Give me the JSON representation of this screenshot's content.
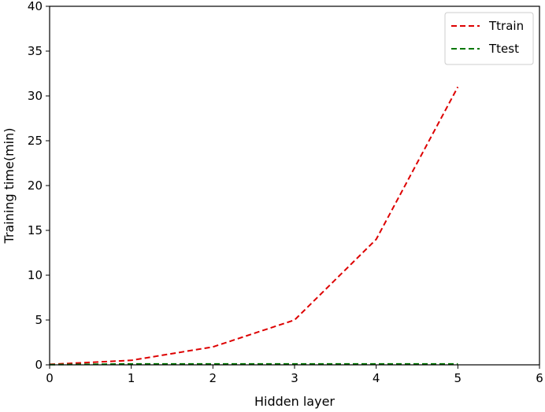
{
  "chart_data": {
    "type": "line",
    "title": "",
    "xlabel": "Hidden layer",
    "ylabel": "Training time(min)",
    "xlim": [
      0,
      6
    ],
    "ylim": [
      0,
      40
    ],
    "xticks": [
      0,
      1,
      2,
      3,
      4,
      5,
      6
    ],
    "yticks": [
      0,
      5,
      10,
      15,
      20,
      25,
      30,
      35,
      40
    ],
    "grid": false,
    "legend_position": "top-right",
    "x": [
      0,
      1,
      2,
      3,
      4,
      5
    ],
    "series": [
      {
        "name": "Ttrain",
        "color": "#dd0000",
        "style": "dashed",
        "values": [
          0.05,
          0.5,
          2.0,
          5.0,
          14.0,
          31.0
        ]
      },
      {
        "name": "Ttest",
        "color": "#007700",
        "style": "dashed",
        "values": [
          0.02,
          0.1,
          0.1,
          0.1,
          0.1,
          0.1
        ]
      }
    ]
  }
}
